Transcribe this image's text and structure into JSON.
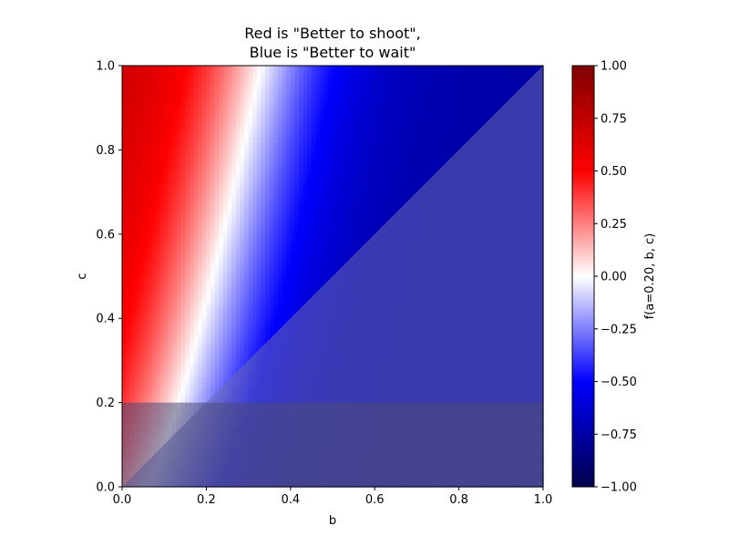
{
  "chart_data": {
    "type": "heatmap",
    "title_lines": [
      "Red is \"Better to shoot\",",
      "Blue is \"Better to wait\""
    ],
    "xlabel": "b",
    "ylabel": "c",
    "xlim": [
      0.0,
      1.0
    ],
    "ylim": [
      0.0,
      1.0
    ],
    "xticks": [
      "0.0",
      "0.2",
      "0.4",
      "0.6",
      "0.8",
      "1.0"
    ],
    "yticks": [
      "0.0",
      "0.2",
      "0.4",
      "0.6",
      "0.8",
      "1.0"
    ],
    "grid": false,
    "colormap": "seismic",
    "a": 0.2,
    "zero_contour": {
      "description": "f = 0 boundary, from (b, c)",
      "points": [
        [
          0.11,
          0.2
        ],
        [
          0.2,
          0.5
        ],
        [
          0.3,
          0.9
        ],
        [
          0.33,
          1.0
        ]
      ]
    },
    "masked_regions": [
      {
        "name": "b-greater-than-c",
        "condition": "b > c",
        "color": "#6a6ab0"
      },
      {
        "name": "c-below-a",
        "condition": "c < 0.2",
        "color": "#4a4a78"
      }
    ],
    "colorbar": {
      "label": "f(a=0.20, b, c)",
      "range": [
        -1.0,
        1.0
      ],
      "ticks": [
        "1.00",
        "0.75",
        "0.50",
        "0.25",
        "0.00",
        "−0.25",
        "−0.50",
        "−0.75",
        "−1.00"
      ],
      "tick_values": [
        1.0,
        0.75,
        0.5,
        0.25,
        0.0,
        -0.25,
        -0.5,
        -0.75,
        -1.0
      ]
    }
  }
}
